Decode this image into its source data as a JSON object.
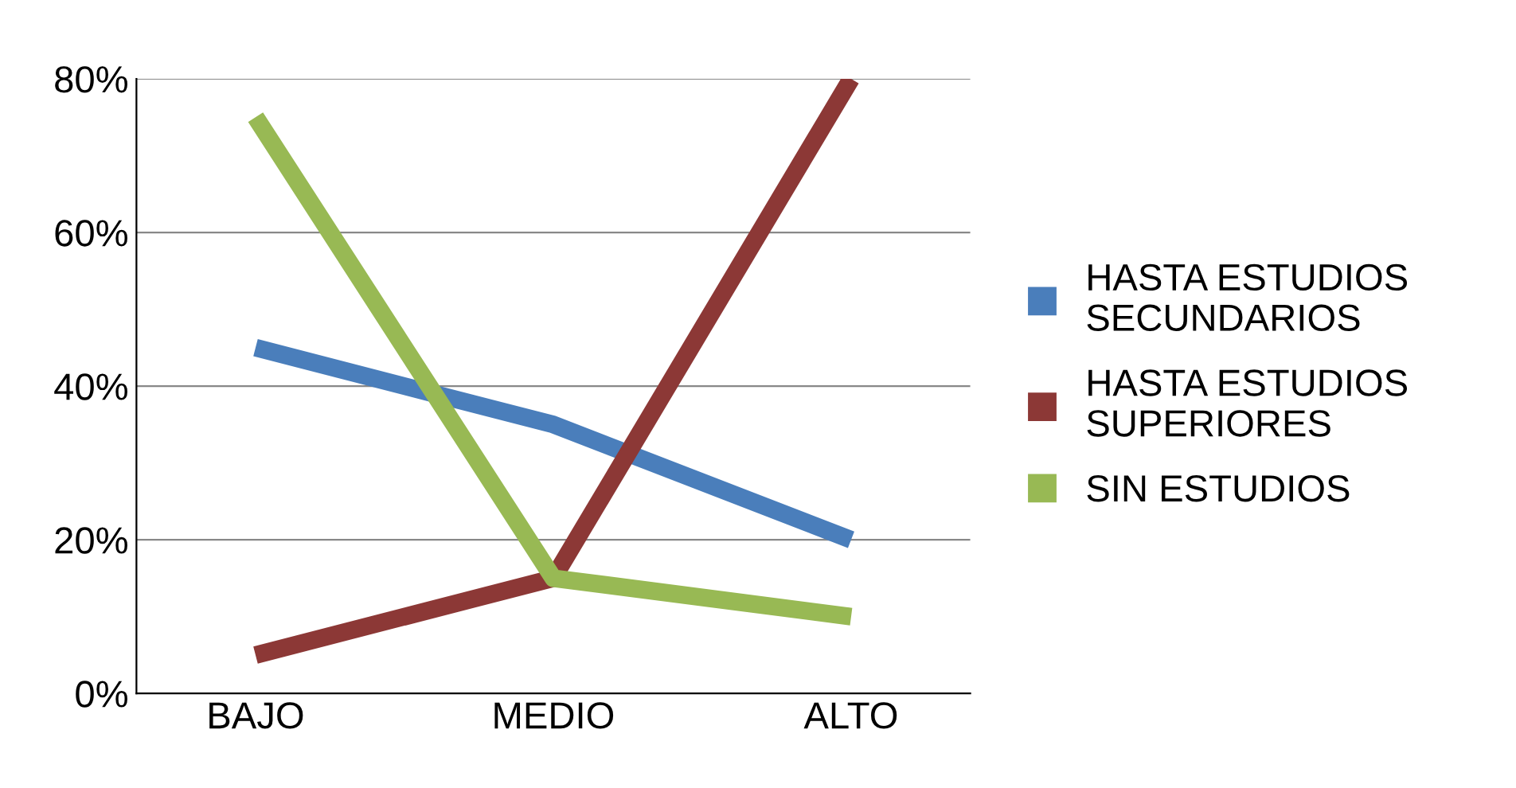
{
  "chart_data": {
    "type": "line",
    "categories": [
      "BAJO",
      "MEDIO",
      "ALTO"
    ],
    "series": [
      {
        "name": "HASTA ESTUDIOS SECUNDARIOS",
        "color": "#4a7ebb",
        "values": [
          45,
          35,
          20
        ]
      },
      {
        "name": "HASTA ESTUDIOS SUPERIORES",
        "color": "#8c3836",
        "values": [
          5,
          15,
          80
        ]
      },
      {
        "name": "SIN ESTUDIOS",
        "color": "#98b954",
        "values": [
          75,
          15,
          10
        ]
      }
    ],
    "ylim": [
      0,
      80
    ],
    "yticks": [
      {
        "value": 0,
        "label": "0%"
      },
      {
        "value": 20,
        "label": "20%"
      },
      {
        "value": 40,
        "label": "40%"
      },
      {
        "value": 60,
        "label": "60%"
      },
      {
        "value": 80,
        "label": "80%"
      }
    ],
    "grid": "y",
    "legend": "right",
    "marker": "none",
    "line_style": "solid"
  }
}
